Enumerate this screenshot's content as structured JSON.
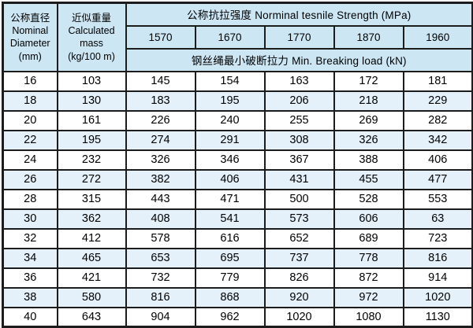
{
  "table": {
    "diameter_header": {
      "cn": "公称直径",
      "en1": "Nominal",
      "en2": "Diameter",
      "unit": "(mm)"
    },
    "mass_header": {
      "cn": "近似重量",
      "en1": "Calculated",
      "en2": "mass",
      "unit": "(kg/100 m)"
    },
    "strength_header": "公称抗拉强度 Norminal tesnile Strength (MPa)",
    "strength_grades": [
      "1570",
      "1670",
      "1770",
      "1870",
      "1960"
    ],
    "breaking_load_header": "钢丝绳最小破断拉力 Min. Breaking load (kN)",
    "rows": [
      {
        "diameter": "16",
        "mass": "103",
        "loads": [
          "145",
          "154",
          "163",
          "172",
          "181"
        ]
      },
      {
        "diameter": "18",
        "mass": "130",
        "loads": [
          "183",
          "195",
          "206",
          "218",
          "229"
        ]
      },
      {
        "diameter": "20",
        "mass": "161",
        "loads": [
          "226",
          "240",
          "255",
          "269",
          "282"
        ]
      },
      {
        "diameter": "22",
        "mass": "195",
        "loads": [
          "274",
          "291",
          "308",
          "326",
          "342"
        ]
      },
      {
        "diameter": "24",
        "mass": "232",
        "loads": [
          "326",
          "346",
          "367",
          "388",
          "406"
        ]
      },
      {
        "diameter": "26",
        "mass": "272",
        "loads": [
          "382",
          "406",
          "431",
          "455",
          "477"
        ]
      },
      {
        "diameter": "28",
        "mass": "315",
        "loads": [
          "443",
          "471",
          "500",
          "528",
          "553"
        ]
      },
      {
        "diameter": "30",
        "mass": "362",
        "loads": [
          "408",
          "541",
          "573",
          "606",
          "63"
        ]
      },
      {
        "diameter": "32",
        "mass": "412",
        "loads": [
          "578",
          "616",
          "652",
          "689",
          "723"
        ]
      },
      {
        "diameter": "34",
        "mass": "465",
        "loads": [
          "653",
          "695",
          "737",
          "778",
          "816"
        ]
      },
      {
        "diameter": "36",
        "mass": "421",
        "loads": [
          "732",
          "779",
          "826",
          "872",
          "914"
        ]
      },
      {
        "diameter": "38",
        "mass": "580",
        "loads": [
          "816",
          "868",
          "920",
          "972",
          "1020"
        ]
      },
      {
        "diameter": "40",
        "mass": "643",
        "loads": [
          "904",
          "962",
          "1020",
          "1080",
          "1130"
        ]
      }
    ]
  },
  "colors": {
    "header_bg": "#cde6f4",
    "stripe_bg": "#e4f1fa",
    "border": "#1c1c1c"
  }
}
